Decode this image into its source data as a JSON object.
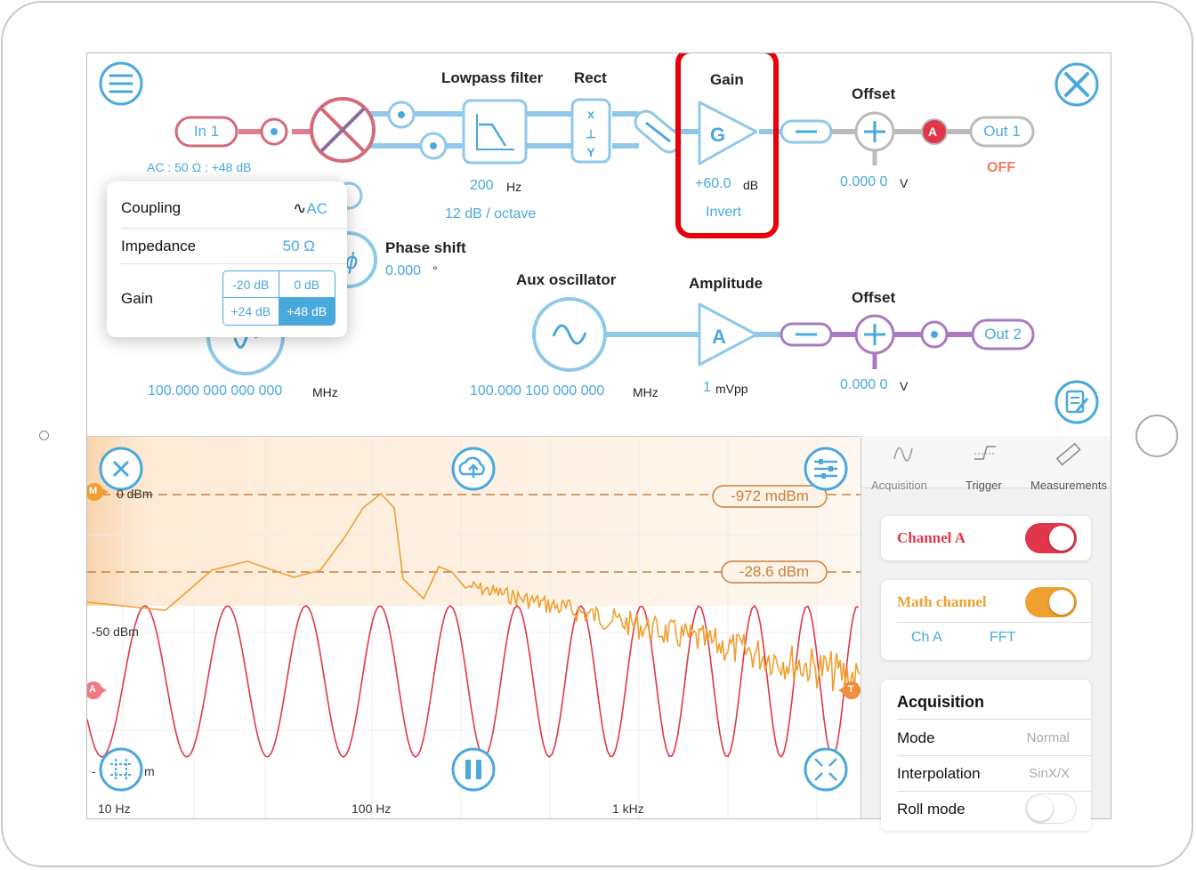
{
  "top": {
    "blocks": {
      "lowpass_label": "Lowpass filter",
      "rect_label": "Rect",
      "gain_label": "Gain",
      "offset1_label": "Offset",
      "phase_label": "Phase shift",
      "aux_label": "Aux oscillator",
      "amplitude_label": "Amplitude",
      "offset2_label": "Offset"
    },
    "in1": "In 1",
    "in1_info": "AC : 50 Ω : +48 dB",
    "lowpass_freq": "200",
    "lowpass_freq_unit": "Hz",
    "lowpass_slope": "12 dB / octave",
    "gain_value": "+60.0",
    "gain_unit": "dB",
    "gain_invert": "Invert",
    "gain_symbol": "G",
    "offset1_value": "0.000 0",
    "offset1_unit": "V",
    "out1": "Out 1",
    "out1_state": "OFF",
    "channel_badge": "A",
    "phase_value": "0.000",
    "phase_unit": "°",
    "ref_freq": "100.000 000 000 000",
    "ref_freq_unit": "MHz",
    "aux_freq": "100.000 100 000 000",
    "aux_freq_unit": "MHz",
    "amp_symbol": "A",
    "amp_value": "1",
    "amp_unit": "mVpp",
    "offset2_value": "0.000 0",
    "offset2_unit": "V",
    "out2": "Out 2"
  },
  "popup": {
    "coupling_label": "Coupling",
    "coupling_value": "AC",
    "impedance_label": "Impedance",
    "impedance_value": "50 Ω",
    "gain_label": "Gain",
    "gain_options": [
      "-20 dB",
      "0 dB",
      "+24 dB",
      "+48 dB"
    ],
    "gain_selected": "+48 dB"
  },
  "plot": {
    "marker_m": "M",
    "marker_a": "A",
    "marker_t": "T",
    "y0_label": "0 dBm",
    "y50_label": "-50 dBm",
    "ybottom_label": "-",
    "ybottom_suffix": "m",
    "cursor1": "-972 mdBm",
    "cursor2": "-28.6 dBm",
    "xticks": [
      "10 Hz",
      "100 Hz",
      "1 kHz"
    ]
  },
  "panel": {
    "tabs": [
      "Acquisition",
      "Trigger",
      "Measurements"
    ],
    "channel_a_label": "Channel A",
    "channel_a_on": true,
    "math_label": "Math channel",
    "math_on": true,
    "math_source": "Ch A",
    "math_op": "FFT",
    "acq_title": "Acquisition",
    "acq_rows": [
      {
        "label": "Mode",
        "value": "Normal"
      },
      {
        "label": "Interpolation",
        "value": "SinX/X"
      },
      {
        "label": "Roll mode",
        "value": ""
      }
    ]
  },
  "colors": {
    "accent": "#4aa9dc",
    "channel_a": "#e0374a",
    "math": "#f0a030",
    "purple": "#9a5fb4",
    "highlight": "#e8000b"
  }
}
